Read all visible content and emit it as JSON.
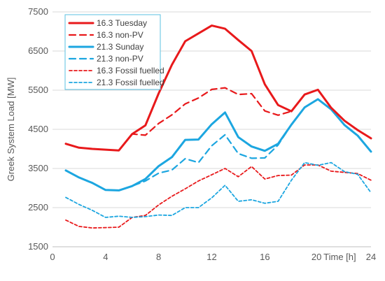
{
  "chart_data": {
    "type": "line",
    "title": "",
    "xlabel": "Time [h]",
    "ylabel": "Greek System Load [MW]",
    "xlim": [
      0,
      24
    ],
    "ylim": [
      1500,
      7500
    ],
    "x_ticks": [
      "0",
      "4",
      "8",
      "12",
      "16",
      "20",
      "24"
    ],
    "y_ticks": [
      "1500",
      "2500",
      "3500",
      "4500",
      "5500",
      "6500",
      "7500"
    ],
    "grid": "horizontal",
    "legend_position": "top-left",
    "x": [
      1,
      2,
      3,
      4,
      5,
      6,
      7,
      8,
      9,
      10,
      11,
      12,
      13,
      14,
      15,
      16,
      17,
      18,
      19,
      20,
      21,
      22,
      23,
      24
    ],
    "series": [
      {
        "name": "16.3 Tuesday",
        "color": "#e8191b",
        "style": "solid",
        "weight": "thick",
        "values": [
          4130,
          4030,
          4000,
          3980,
          3960,
          4380,
          4600,
          5420,
          6150,
          6750,
          6950,
          7150,
          7070,
          6780,
          6500,
          5650,
          5120,
          4960,
          5390,
          5510,
          5050,
          4720,
          4480,
          4270
        ]
      },
      {
        "name": "16.3 non-PV",
        "color": "#e8191b",
        "style": "dashed",
        "weight": "medium",
        "values": [
          4130,
          4030,
          4000,
          3980,
          3960,
          4380,
          4350,
          4650,
          4870,
          5150,
          5300,
          5520,
          5560,
          5390,
          5410,
          4970,
          4860,
          4960,
          5390,
          5510,
          5050,
          4720,
          4480,
          4270
        ]
      },
      {
        "name": "21.3 Sunday",
        "color": "#1ca6e0",
        "style": "solid",
        "weight": "thick",
        "values": [
          3450,
          3270,
          3130,
          2950,
          2940,
          3050,
          3230,
          3560,
          3790,
          4230,
          4240,
          4630,
          4930,
          4300,
          4060,
          3950,
          4130,
          4620,
          5060,
          5270,
          5010,
          4610,
          4340,
          3930
        ]
      },
      {
        "name": "21.3 non-PV",
        "color": "#1ca6e0",
        "style": "dashed",
        "weight": "medium",
        "values": [
          3450,
          3270,
          3130,
          2950,
          2940,
          3050,
          3180,
          3380,
          3460,
          3750,
          3650,
          4080,
          4360,
          3880,
          3760,
          3770,
          4100,
          4620,
          5060,
          5270,
          5010,
          4610,
          4340,
          3930
        ]
      },
      {
        "name": "16.3 Fossil fuelled",
        "color": "#e8191b",
        "style": "dotted",
        "weight": "thin",
        "values": [
          2180,
          2020,
          1980,
          1990,
          2000,
          2250,
          2300,
          2570,
          2790,
          2980,
          3180,
          3340,
          3500,
          3290,
          3550,
          3230,
          3320,
          3330,
          3590,
          3590,
          3430,
          3400,
          3370,
          3200
        ]
      },
      {
        "name": "21.3 Fossil fuelled",
        "color": "#1ca6e0",
        "style": "dotted",
        "weight": "thin",
        "values": [
          2760,
          2580,
          2430,
          2250,
          2280,
          2250,
          2270,
          2310,
          2300,
          2500,
          2500,
          2750,
          3070,
          2660,
          2700,
          2610,
          2660,
          3200,
          3650,
          3580,
          3650,
          3420,
          3350,
          2880
        ]
      }
    ]
  }
}
